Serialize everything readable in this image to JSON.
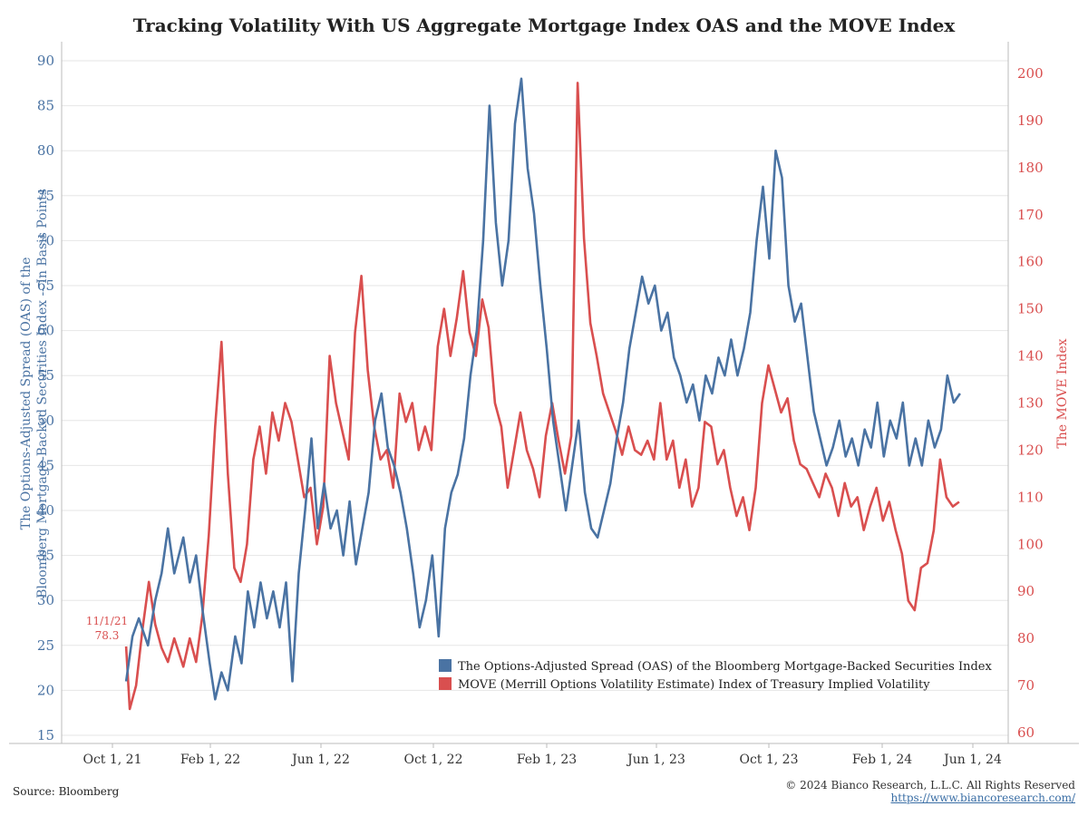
{
  "chart_data": {
    "type": "line",
    "title": "Tracking Volatility With US Aggregate Mortgage Index OAS and the MOVE Index",
    "left_axis": {
      "label_line1": "The Options-Adjusted Spread (OAS) of the",
      "label_line2": "Bloomberg Mortgage-Backed Securities Index -- In Basis Points",
      "range": [
        15,
        90
      ],
      "ticks": [
        15,
        20,
        25,
        30,
        35,
        40,
        45,
        50,
        55,
        60,
        65,
        70,
        75,
        80,
        85,
        90
      ],
      "color": "#4a73a3"
    },
    "right_axis": {
      "label": "The MOVE Index",
      "range": [
        60,
        200
      ],
      "ticks": [
        60,
        70,
        80,
        90,
        100,
        110,
        120,
        130,
        140,
        150,
        160,
        170,
        180,
        190,
        200
      ],
      "color": "#d94f4f"
    },
    "x_axis": {
      "ticks": [
        "Oct 1, 21",
        "Feb 1, 22",
        "Jun 1, 22",
        "Oct 1, 22",
        "Feb 1, 23",
        "Jun 1, 23",
        "Oct 1, 23",
        "Feb 1, 24",
        "Jun 1, 24"
      ],
      "range": [
        "2021-09-01",
        "2024-06-15"
      ]
    },
    "grid": true,
    "legend_position": "bottom-center",
    "series": [
      {
        "name": "The Options-Adjusted Spread (OAS) of the Bloomberg Mortgage-Backed Securities Index",
        "axis": "left",
        "color": "#4a73a3",
        "points": [
          [
            "2021-11-01",
            21
          ],
          [
            "2021-11-08",
            26
          ],
          [
            "2021-11-15",
            28
          ],
          [
            "2021-11-25",
            25
          ],
          [
            "2021-12-03",
            30
          ],
          [
            "2021-12-10",
            33
          ],
          [
            "2021-12-17",
            38
          ],
          [
            "2021-12-24",
            33
          ],
          [
            "2022-01-03",
            37
          ],
          [
            "2022-01-10",
            32
          ],
          [
            "2022-01-17",
            35
          ],
          [
            "2022-01-24",
            29
          ],
          [
            "2022-02-01",
            23
          ],
          [
            "2022-02-07",
            19
          ],
          [
            "2022-02-14",
            22
          ],
          [
            "2022-02-21",
            20
          ],
          [
            "2022-03-01",
            26
          ],
          [
            "2022-03-08",
            23
          ],
          [
            "2022-03-15",
            31
          ],
          [
            "2022-03-22",
            27
          ],
          [
            "2022-03-29",
            32
          ],
          [
            "2022-04-05",
            28
          ],
          [
            "2022-04-12",
            31
          ],
          [
            "2022-04-19",
            27
          ],
          [
            "2022-04-26",
            32
          ],
          [
            "2022-05-03",
            21
          ],
          [
            "2022-05-10",
            33
          ],
          [
            "2022-05-17",
            40
          ],
          [
            "2022-05-24",
            48
          ],
          [
            "2022-05-31",
            38
          ],
          [
            "2022-06-07",
            43
          ],
          [
            "2022-06-14",
            38
          ],
          [
            "2022-06-21",
            40
          ],
          [
            "2022-06-28",
            35
          ],
          [
            "2022-07-05",
            41
          ],
          [
            "2022-07-12",
            34
          ],
          [
            "2022-07-19",
            38
          ],
          [
            "2022-07-26",
            42
          ],
          [
            "2022-08-02",
            50
          ],
          [
            "2022-08-09",
            53
          ],
          [
            "2022-08-16",
            47
          ],
          [
            "2022-08-23",
            45
          ],
          [
            "2022-08-30",
            42
          ],
          [
            "2022-09-06",
            38
          ],
          [
            "2022-09-13",
            33
          ],
          [
            "2022-09-20",
            27
          ],
          [
            "2022-09-27",
            30
          ],
          [
            "2022-10-04",
            35
          ],
          [
            "2022-10-11",
            26
          ],
          [
            "2022-10-18",
            38
          ],
          [
            "2022-10-25",
            42
          ],
          [
            "2022-11-01",
            44
          ],
          [
            "2022-11-08",
            48
          ],
          [
            "2022-11-15",
            55
          ],
          [
            "2022-11-22",
            60
          ],
          [
            "2022-11-29",
            70
          ],
          [
            "2022-12-06",
            85
          ],
          [
            "2022-12-13",
            72
          ],
          [
            "2022-12-20",
            65
          ],
          [
            "2022-12-27",
            70
          ],
          [
            "2023-01-03",
            83
          ],
          [
            "2023-01-10",
            88
          ],
          [
            "2023-01-17",
            78
          ],
          [
            "2023-01-24",
            73
          ],
          [
            "2023-01-31",
            65
          ],
          [
            "2023-02-07",
            58
          ],
          [
            "2023-02-14",
            50
          ],
          [
            "2023-02-21",
            45
          ],
          [
            "2023-02-28",
            40
          ],
          [
            "2023-03-07",
            45
          ],
          [
            "2023-03-14",
            50
          ],
          [
            "2023-03-21",
            42
          ],
          [
            "2023-03-28",
            38
          ],
          [
            "2023-04-04",
            37
          ],
          [
            "2023-04-11",
            40
          ],
          [
            "2023-04-18",
            43
          ],
          [
            "2023-04-25",
            48
          ],
          [
            "2023-05-02",
            52
          ],
          [
            "2023-05-09",
            58
          ],
          [
            "2023-05-16",
            62
          ],
          [
            "2023-05-23",
            66
          ],
          [
            "2023-05-30",
            63
          ],
          [
            "2023-06-06",
            65
          ],
          [
            "2023-06-13",
            60
          ],
          [
            "2023-06-20",
            62
          ],
          [
            "2023-06-27",
            57
          ],
          [
            "2023-07-04",
            55
          ],
          [
            "2023-07-11",
            52
          ],
          [
            "2023-07-18",
            54
          ],
          [
            "2023-07-25",
            50
          ],
          [
            "2023-08-01",
            55
          ],
          [
            "2023-08-08",
            53
          ],
          [
            "2023-08-15",
            57
          ],
          [
            "2023-08-22",
            55
          ],
          [
            "2023-08-29",
            59
          ],
          [
            "2023-09-05",
            55
          ],
          [
            "2023-09-12",
            58
          ],
          [
            "2023-09-19",
            62
          ],
          [
            "2023-09-26",
            70
          ],
          [
            "2023-10-03",
            76
          ],
          [
            "2023-10-10",
            68
          ],
          [
            "2023-10-17",
            80
          ],
          [
            "2023-10-24",
            77
          ],
          [
            "2023-10-31",
            65
          ],
          [
            "2023-11-07",
            61
          ],
          [
            "2023-11-14",
            63
          ],
          [
            "2023-11-21",
            57
          ],
          [
            "2023-11-28",
            51
          ],
          [
            "2023-12-05",
            48
          ],
          [
            "2023-12-12",
            45
          ],
          [
            "2023-12-19",
            47
          ],
          [
            "2023-12-26",
            50
          ],
          [
            "2024-01-02",
            46
          ],
          [
            "2024-01-09",
            48
          ],
          [
            "2024-01-16",
            45
          ],
          [
            "2024-01-23",
            49
          ],
          [
            "2024-01-30",
            47
          ],
          [
            "2024-02-06",
            52
          ],
          [
            "2024-02-13",
            46
          ],
          [
            "2024-02-20",
            50
          ],
          [
            "2024-02-27",
            48
          ],
          [
            "2024-03-05",
            52
          ],
          [
            "2024-03-12",
            45
          ],
          [
            "2024-03-19",
            48
          ],
          [
            "2024-03-26",
            45
          ],
          [
            "2024-04-02",
            50
          ],
          [
            "2024-04-09",
            47
          ],
          [
            "2024-04-16",
            49
          ],
          [
            "2024-04-23",
            55
          ],
          [
            "2024-04-30",
            52
          ],
          [
            "2024-05-07",
            53
          ]
        ]
      },
      {
        "name": "MOVE (Merrill Options Volatility Estimate) Index of Treasury Implied Volatility",
        "axis": "right",
        "color": "#d94f4f",
        "points": [
          [
            "2021-11-01",
            78.3
          ],
          [
            "2021-11-05",
            65
          ],
          [
            "2021-11-12",
            70
          ],
          [
            "2021-11-19",
            82
          ],
          [
            "2021-11-26",
            92
          ],
          [
            "2021-12-03",
            83
          ],
          [
            "2021-12-10",
            78
          ],
          [
            "2021-12-17",
            75
          ],
          [
            "2021-12-24",
            80
          ],
          [
            "2022-01-03",
            74
          ],
          [
            "2022-01-10",
            80
          ],
          [
            "2022-01-17",
            75
          ],
          [
            "2022-01-24",
            85
          ],
          [
            "2022-01-31",
            102
          ],
          [
            "2022-02-07",
            125
          ],
          [
            "2022-02-14",
            143
          ],
          [
            "2022-02-21",
            115
          ],
          [
            "2022-02-28",
            95
          ],
          [
            "2022-03-07",
            92
          ],
          [
            "2022-03-14",
            100
          ],
          [
            "2022-03-21",
            118
          ],
          [
            "2022-03-28",
            125
          ],
          [
            "2022-04-04",
            115
          ],
          [
            "2022-04-11",
            128
          ],
          [
            "2022-04-18",
            122
          ],
          [
            "2022-04-25",
            130
          ],
          [
            "2022-05-02",
            126
          ],
          [
            "2022-05-09",
            118
          ],
          [
            "2022-05-16",
            110
          ],
          [
            "2022-05-23",
            112
          ],
          [
            "2022-05-30",
            100
          ],
          [
            "2022-06-06",
            108
          ],
          [
            "2022-06-13",
            140
          ],
          [
            "2022-06-20",
            130
          ],
          [
            "2022-06-27",
            124
          ],
          [
            "2022-07-04",
            118
          ],
          [
            "2022-07-11",
            145
          ],
          [
            "2022-07-18",
            157
          ],
          [
            "2022-07-25",
            137
          ],
          [
            "2022-08-01",
            125
          ],
          [
            "2022-08-08",
            118
          ],
          [
            "2022-08-15",
            120
          ],
          [
            "2022-08-22",
            112
          ],
          [
            "2022-08-29",
            132
          ],
          [
            "2022-09-05",
            126
          ],
          [
            "2022-09-12",
            130
          ],
          [
            "2022-09-19",
            120
          ],
          [
            "2022-09-26",
            125
          ],
          [
            "2022-10-03",
            120
          ],
          [
            "2022-10-10",
            142
          ],
          [
            "2022-10-17",
            150
          ],
          [
            "2022-10-24",
            140
          ],
          [
            "2022-10-31",
            148
          ],
          [
            "2022-11-07",
            158
          ],
          [
            "2022-11-14",
            145
          ],
          [
            "2022-11-21",
            140
          ],
          [
            "2022-11-28",
            152
          ],
          [
            "2022-12-05",
            146
          ],
          [
            "2022-12-12",
            130
          ],
          [
            "2022-12-19",
            125
          ],
          [
            "2022-12-26",
            112
          ],
          [
            "2023-01-02",
            120
          ],
          [
            "2023-01-09",
            128
          ],
          [
            "2023-01-16",
            120
          ],
          [
            "2023-01-23",
            116
          ],
          [
            "2023-01-30",
            110
          ],
          [
            "2023-02-06",
            123
          ],
          [
            "2023-02-13",
            130
          ],
          [
            "2023-02-20",
            122
          ],
          [
            "2023-02-27",
            115
          ],
          [
            "2023-03-06",
            123
          ],
          [
            "2023-03-13",
            198
          ],
          [
            "2023-03-20",
            165
          ],
          [
            "2023-03-27",
            147
          ],
          [
            "2023-04-03",
            140
          ],
          [
            "2023-04-10",
            132
          ],
          [
            "2023-04-17",
            128
          ],
          [
            "2023-04-24",
            124
          ],
          [
            "2023-05-01",
            119
          ],
          [
            "2023-05-08",
            125
          ],
          [
            "2023-05-15",
            120
          ],
          [
            "2023-05-22",
            119
          ],
          [
            "2023-05-29",
            122
          ],
          [
            "2023-06-05",
            118
          ],
          [
            "2023-06-12",
            130
          ],
          [
            "2023-06-19",
            118
          ],
          [
            "2023-06-26",
            122
          ],
          [
            "2023-07-03",
            112
          ],
          [
            "2023-07-10",
            118
          ],
          [
            "2023-07-17",
            108
          ],
          [
            "2023-07-24",
            112
          ],
          [
            "2023-07-31",
            126
          ],
          [
            "2023-08-07",
            125
          ],
          [
            "2023-08-14",
            117
          ],
          [
            "2023-08-21",
            120
          ],
          [
            "2023-08-28",
            112
          ],
          [
            "2023-09-04",
            106
          ],
          [
            "2023-09-11",
            110
          ],
          [
            "2023-09-18",
            103
          ],
          [
            "2023-09-25",
            112
          ],
          [
            "2023-10-02",
            130
          ],
          [
            "2023-10-09",
            138
          ],
          [
            "2023-10-16",
            133
          ],
          [
            "2023-10-23",
            128
          ],
          [
            "2023-10-30",
            131
          ],
          [
            "2023-11-06",
            122
          ],
          [
            "2023-11-13",
            117
          ],
          [
            "2023-11-20",
            116
          ],
          [
            "2023-11-27",
            113
          ],
          [
            "2023-12-04",
            110
          ],
          [
            "2023-12-11",
            115
          ],
          [
            "2023-12-18",
            112
          ],
          [
            "2023-12-25",
            106
          ],
          [
            "2024-01-01",
            113
          ],
          [
            "2024-01-08",
            108
          ],
          [
            "2024-01-15",
            110
          ],
          [
            "2024-01-22",
            103
          ],
          [
            "2024-01-29",
            108
          ],
          [
            "2024-02-05",
            112
          ],
          [
            "2024-02-12",
            105
          ],
          [
            "2024-02-19",
            109
          ],
          [
            "2024-02-26",
            103
          ],
          [
            "2024-03-04",
            98
          ],
          [
            "2024-03-11",
            88
          ],
          [
            "2024-03-18",
            86
          ],
          [
            "2024-03-25",
            95
          ],
          [
            "2024-04-01",
            96
          ],
          [
            "2024-04-08",
            103
          ],
          [
            "2024-04-15",
            118
          ],
          [
            "2024-04-22",
            110
          ],
          [
            "2024-04-29",
            108
          ],
          [
            "2024-05-06",
            109
          ]
        ]
      }
    ],
    "annotation": {
      "date_label": "11/1/21",
      "value_label": "78.3"
    }
  },
  "legend": {
    "oas": "The Options-Adjusted Spread (OAS) of the Bloomberg Mortgage-Backed Securities Index",
    "move": "MOVE (Merrill Options Volatility Estimate) Index of Treasury Implied Volatility"
  },
  "footer": {
    "source": "Source: Bloomberg",
    "copyright": "© 2024 Bianco Research, L.L.C. All Rights Reserved",
    "url": "https://www.biancoresearch.com/"
  },
  "colors": {
    "oas": "#4a73a3",
    "move": "#d94f4f",
    "grid": "#e6e6e6"
  }
}
